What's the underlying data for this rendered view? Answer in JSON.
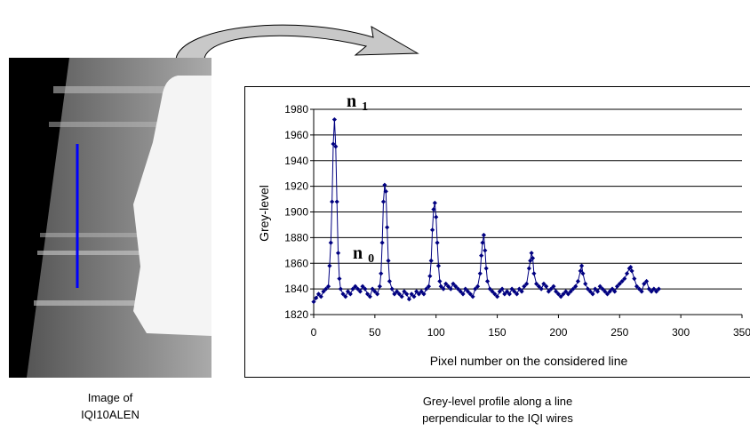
{
  "chart_data": {
    "type": "line",
    "x_label": "Pixel number on the considered line",
    "y_label": "Grey-level",
    "annotations": [
      {
        "text": "n",
        "sub": "1"
      },
      {
        "text": "n",
        "sub": "0"
      }
    ],
    "series": [
      {
        "color": "#000080",
        "x": [
          0,
          2,
          4,
          6,
          8,
          10,
          12,
          13,
          14,
          15,
          16,
          17,
          18,
          19,
          20,
          21,
          22,
          24,
          26,
          28,
          30,
          32,
          34,
          36,
          38,
          40,
          42,
          44,
          46,
          48,
          50,
          52,
          54,
          55,
          56,
          57,
          58,
          59,
          60,
          61,
          62,
          64,
          66,
          68,
          70,
          72,
          74,
          76,
          78,
          80,
          82,
          84,
          86,
          88,
          90,
          92,
          94,
          95,
          96,
          97,
          98,
          99,
          100,
          101,
          102,
          103,
          104,
          106,
          108,
          110,
          112,
          114,
          116,
          118,
          120,
          122,
          124,
          126,
          128,
          130,
          132,
          134,
          136,
          137,
          138,
          139,
          140,
          141,
          142,
          144,
          146,
          148,
          150,
          152,
          154,
          156,
          158,
          160,
          162,
          164,
          166,
          168,
          170,
          172,
          174,
          176,
          177,
          178,
          179,
          180,
          182,
          184,
          186,
          188,
          190,
          192,
          194,
          196,
          198,
          200,
          202,
          204,
          206,
          208,
          210,
          212,
          214,
          216,
          218,
          219,
          220,
          222,
          224,
          226,
          228,
          230,
          232,
          234,
          236,
          238,
          240,
          242,
          244,
          246,
          248,
          250,
          252,
          254,
          256,
          258,
          259,
          260,
          262,
          264,
          266,
          268,
          270,
          272,
          274,
          276,
          278,
          280,
          282
        ],
        "values": [
          1830,
          1833,
          1836,
          1834,
          1838,
          1840,
          1842,
          1858,
          1876,
          1908,
          1953,
          1972,
          1951,
          1908,
          1868,
          1848,
          1840,
          1836,
          1834,
          1838,
          1836,
          1840,
          1842,
          1840,
          1838,
          1842,
          1840,
          1836,
          1834,
          1840,
          1838,
          1836,
          1842,
          1852,
          1876,
          1908,
          1921,
          1916,
          1888,
          1862,
          1846,
          1840,
          1836,
          1838,
          1836,
          1834,
          1838,
          1836,
          1832,
          1836,
          1834,
          1838,
          1836,
          1838,
          1836,
          1840,
          1842,
          1850,
          1862,
          1886,
          1902,
          1907,
          1896,
          1876,
          1858,
          1846,
          1842,
          1840,
          1844,
          1842,
          1840,
          1844,
          1842,
          1840,
          1838,
          1836,
          1840,
          1838,
          1836,
          1834,
          1840,
          1842,
          1852,
          1866,
          1876,
          1882,
          1870,
          1856,
          1846,
          1840,
          1838,
          1836,
          1834,
          1838,
          1840,
          1836,
          1838,
          1836,
          1840,
          1838,
          1836,
          1840,
          1838,
          1842,
          1844,
          1856,
          1862,
          1868,
          1864,
          1852,
          1844,
          1842,
          1840,
          1844,
          1842,
          1838,
          1840,
          1842,
          1838,
          1836,
          1834,
          1836,
          1838,
          1836,
          1838,
          1840,
          1842,
          1846,
          1854,
          1858,
          1852,
          1844,
          1840,
          1838,
          1836,
          1840,
          1838,
          1842,
          1840,
          1838,
          1836,
          1838,
          1840,
          1838,
          1842,
          1844,
          1846,
          1848,
          1852,
          1856,
          1857,
          1854,
          1848,
          1842,
          1840,
          1838,
          1844,
          1846,
          1840,
          1838,
          1840,
          1838,
          1840
        ]
      }
    ],
    "xlim": [
      0,
      350
    ],
    "xticks": [
      0,
      50,
      100,
      150,
      200,
      250,
      300,
      350
    ],
    "ylim": [
      1820,
      1980
    ],
    "yticks": [
      1820,
      1840,
      1860,
      1880,
      1900,
      1920,
      1940,
      1960,
      1980
    ],
    "grid": true
  },
  "image_caption": [
    "Image of",
    "IQI10ALEN"
  ],
  "chart_caption": [
    "Grey-level profile along a line",
    "perpendicular to the IQI wires"
  ]
}
